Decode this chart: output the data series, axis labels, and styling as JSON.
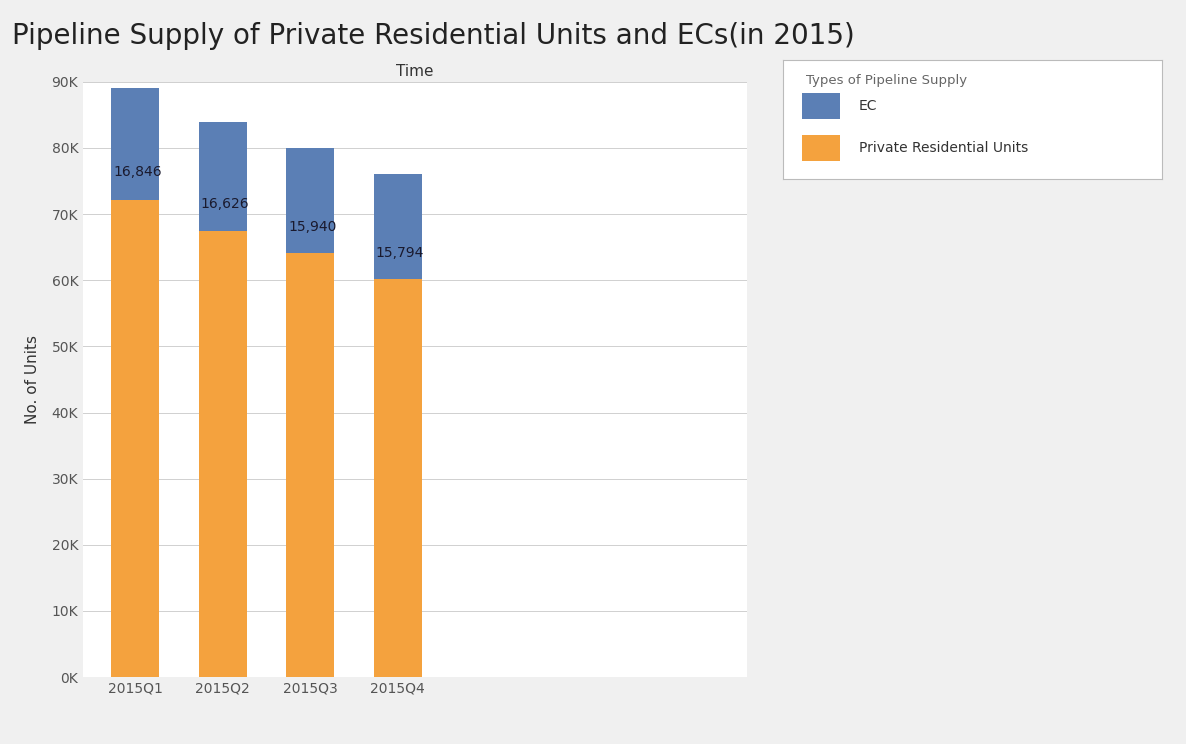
{
  "title": "Pipeline Supply of Private Residential Units and ECs(in 2015)",
  "xlabel": "Time",
  "ylabel": "No. of Units",
  "categories": [
    "2015Q1",
    "2015Q2",
    "2015Q3",
    "2015Q4"
  ],
  "ec_values": [
    16846,
    16626,
    15940,
    15794
  ],
  "private_values": [
    72154,
    67374,
    64060,
    60206
  ],
  "ec_color": "#5b7fb5",
  "private_color": "#f4a23e",
  "ec_label": "EC",
  "private_label": "Private Residential Units",
  "legend_title": "Types of Pipeline Supply",
  "ylim": [
    0,
    90000
  ],
  "ytick_step": 10000,
  "background_color": "#f0f0f0",
  "plot_background": "#ffffff",
  "title_fontsize": 20,
  "axis_label_fontsize": 11,
  "tick_fontsize": 10,
  "bar_width": 0.55,
  "annotation_fontsize": 10
}
